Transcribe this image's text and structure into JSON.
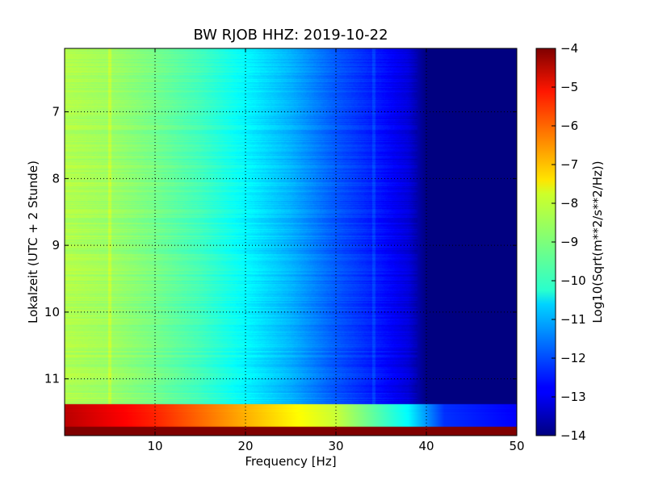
{
  "chart_data": {
    "type": "heatmap",
    "title": "BW RJOB HHZ: 2019-10-22",
    "xlabel": "Frequency [Hz]",
    "ylabel": "Lokalzeit (UTC + 2 Stunde)",
    "xlim": [
      0,
      50
    ],
    "ylim": [
      11.85,
      6.05
    ],
    "y_inverted": true,
    "x_ticks": [
      10,
      20,
      30,
      40,
      50
    ],
    "x_tick_labels": [
      "10",
      "20",
      "30",
      "40",
      "50"
    ],
    "y_ticks": [
      7,
      8,
      9,
      10,
      11
    ],
    "y_tick_labels": [
      "7",
      "8",
      "9",
      "10",
      "11"
    ],
    "grid": true,
    "colorbar": {
      "label": "Log10(Sqrt(m**2/s**2/Hz))",
      "min": -14,
      "max": -4,
      "ticks": [
        -4,
        -5,
        -6,
        -7,
        -8,
        -9,
        -10,
        -11,
        -12,
        -13,
        -14
      ],
      "tick_labels": [
        "−4",
        "−5",
        "−6",
        "−7",
        "−8",
        "−9",
        "−10",
        "−11",
        "−12",
        "−13",
        "−14"
      ],
      "colormap": "jet"
    },
    "spectrum_profile": {
      "frequency_hz": [
        0,
        5,
        10,
        15,
        20,
        25,
        30,
        35,
        38,
        40,
        50
      ],
      "log10_amplitude": [
        -8.5,
        -8.7,
        -9.1,
        -9.6,
        -10.3,
        -11.0,
        -11.9,
        -12.6,
        -13.1,
        -14.0,
        -14.0
      ]
    },
    "spectral_lines_hz": [
      5.0,
      34.2
    ],
    "burst_segment": {
      "time_range": [
        11.38,
        11.85
      ],
      "frequency_hz": [
        0,
        10,
        20,
        30,
        38,
        42,
        50
      ],
      "log10_amplitude": [
        -4.6,
        -5.6,
        -7.0,
        -8.3,
        -10.3,
        -12.3,
        -12.8
      ]
    }
  }
}
